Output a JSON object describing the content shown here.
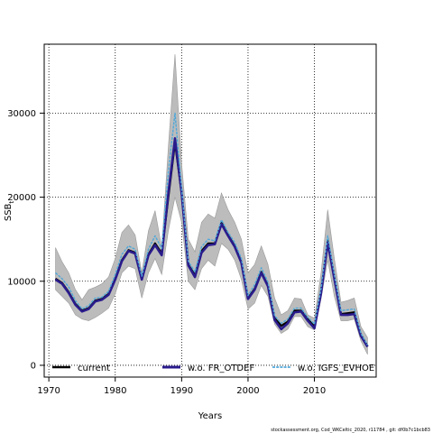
{
  "chart_data": {
    "type": "line",
    "title": "",
    "xlabel": "Years",
    "ylabel": "SSB",
    "ylabel_subscript": "t",
    "xlim": [
      1969.3,
      2019.3
    ],
    "ylim": [
      -1400,
      38200
    ],
    "xticks": [
      1970,
      1980,
      1990,
      2000,
      2010
    ],
    "yticks": [
      0,
      10000,
      20000,
      30000
    ],
    "grid": true,
    "legend_placement": "bottom",
    "x": [
      1971,
      1972,
      1973,
      1974,
      1975,
      1976,
      1977,
      1978,
      1979,
      1980,
      1981,
      1982,
      1983,
      1984,
      1985,
      1986,
      1987,
      1988,
      1989,
      1990,
      1991,
      1992,
      1993,
      1994,
      1995,
      1996,
      1997,
      1998,
      1999,
      2000,
      2001,
      2002,
      2003,
      2004,
      2005,
      2006,
      2007,
      2008,
      2009,
      2010,
      2011,
      2012,
      2013,
      2014,
      2015,
      2016,
      2017,
      2018
    ],
    "band": {
      "name": "confidence interval",
      "color": "#bcbcbc",
      "upper": [
        14000,
        12300,
        11000,
        9000,
        7800,
        9000,
        9300,
        9700,
        10500,
        12700,
        15800,
        16700,
        15500,
        11000,
        16000,
        18400,
        14000,
        26000,
        37000,
        24000,
        15000,
        13500,
        17000,
        18000,
        17500,
        20500,
        18500,
        17000,
        15000,
        11000,
        12000,
        14200,
        12000,
        8000,
        6000,
        6500,
        8000,
        7900,
        6000,
        5600,
        11000,
        18500,
        12700,
        7500,
        7700,
        8000,
        4600,
        3300
      ],
      "lower": [
        9000,
        8200,
        7400,
        6000,
        5500,
        5300,
        5700,
        6200,
        6800,
        8500,
        11000,
        11800,
        11500,
        8000,
        11000,
        12700,
        10800,
        16000,
        20000,
        17000,
        10000,
        9000,
        11500,
        12500,
        11800,
        14500,
        13800,
        12500,
        10200,
        6700,
        7400,
        9500,
        8200,
        4900,
        3800,
        4300,
        5800,
        5800,
        4600,
        4200,
        7900,
        12500,
        8200,
        5300,
        5300,
        5500,
        2900,
        1300
      ]
    },
    "series": [
      {
        "name": "current",
        "color": "#000000",
        "values": [
          10300,
          9800,
          8700,
          7300,
          6500,
          6800,
          7700,
          7900,
          8500,
          10300,
          12500,
          13700,
          13400,
          10300,
          13200,
          14500,
          13300,
          20000,
          26500,
          20500,
          12000,
          10700,
          13600,
          14500,
          14500,
          17000,
          15500,
          14200,
          12300,
          8000,
          9100,
          11100,
          9500,
          5600,
          4700,
          5200,
          6500,
          6500,
          5500,
          4600,
          8800,
          14800,
          10500,
          6100,
          6200,
          6300,
          3600,
          2300
        ]
      },
      {
        "name": "w.o. FR_OTDEF",
        "color": "#2a1b8c",
        "values": [
          10200,
          9700,
          8600,
          7200,
          6400,
          6700,
          7600,
          7800,
          8400,
          10200,
          12400,
          13600,
          13300,
          10200,
          13100,
          14300,
          13100,
          20500,
          27000,
          20500,
          11900,
          10500,
          13400,
          14300,
          14400,
          16800,
          15400,
          14100,
          12200,
          7900,
          9000,
          11000,
          9400,
          5400,
          4300,
          5000,
          6300,
          6400,
          5300,
          4400,
          8600,
          14600,
          10300,
          6000,
          6000,
          6100,
          3500,
          2200
        ]
      },
      {
        "name": "w.o. IGFS_EVHOE",
        "color": "#4fa7d9",
        "values": [
          11000,
          10300,
          9300,
          7700,
          6700,
          7100,
          8000,
          8100,
          8800,
          10800,
          13200,
          14200,
          13800,
          10600,
          13800,
          15400,
          13900,
          23000,
          30000,
          21000,
          12400,
          11100,
          14100,
          15000,
          14800,
          17300,
          15800,
          14600,
          12700,
          8300,
          9600,
          11600,
          9900,
          5900,
          5000,
          5500,
          6800,
          6800,
          5700,
          4900,
          9100,
          15400,
          10800,
          6500,
          6600,
          6700,
          3800,
          2400
        ]
      }
    ]
  },
  "footer": {
    "text": "stockassessment.org, Cod_WKCeltic_2020, r11784 , git: df0b7c1bcb83"
  }
}
